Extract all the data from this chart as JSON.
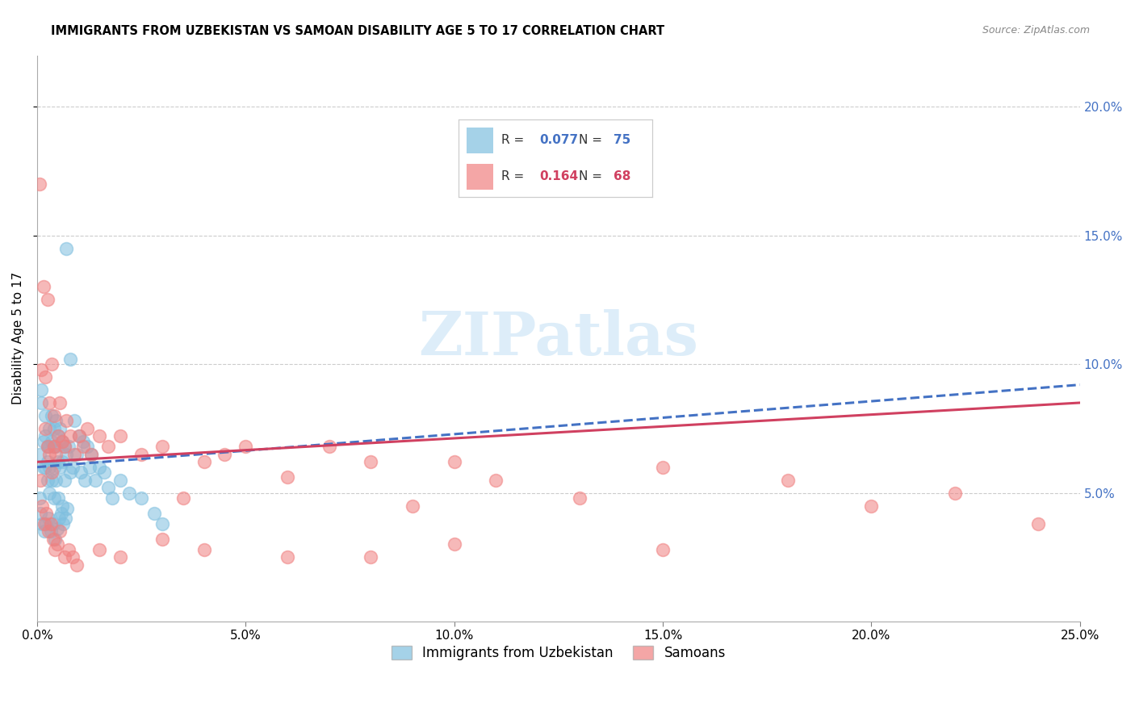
{
  "title": "IMMIGRANTS FROM UZBEKISTAN VS SAMOAN DISABILITY AGE 5 TO 17 CORRELATION CHART",
  "source": "Source: ZipAtlas.com",
  "ylabel": "Disability Age 5 to 17",
  "xlim": [
    0.0,
    0.25
  ],
  "ylim": [
    0.0,
    0.22
  ],
  "xticks": [
    0.0,
    0.05,
    0.1,
    0.15,
    0.2,
    0.25
  ],
  "yticks": [
    0.05,
    0.1,
    0.15,
    0.2
  ],
  "ytick_labels_right": [
    "5.0%",
    "10.0%",
    "15.0%",
    "20.0%"
  ],
  "xtick_labels": [
    "0.0%",
    "5.0%",
    "10.0%",
    "15.0%",
    "20.0%",
    "25.0%"
  ],
  "r1": "0.077",
  "n1": "75",
  "r2": "0.164",
  "n2": "68",
  "color_blue": "#7fbfdf",
  "color_pink": "#f08080",
  "color_blue_line": "#4472c4",
  "color_pink_line": "#d04060",
  "watermark": "ZIPatlas",
  "uzbekistan_x": [
    0.0005,
    0.001,
    0.001,
    0.0015,
    0.0015,
    0.002,
    0.002,
    0.002,
    0.0025,
    0.0025,
    0.0025,
    0.003,
    0.003,
    0.003,
    0.003,
    0.0035,
    0.0035,
    0.0035,
    0.004,
    0.004,
    0.004,
    0.004,
    0.0045,
    0.0045,
    0.0045,
    0.005,
    0.005,
    0.005,
    0.0055,
    0.0055,
    0.006,
    0.006,
    0.006,
    0.0065,
    0.0065,
    0.007,
    0.007,
    0.0075,
    0.008,
    0.008,
    0.0085,
    0.009,
    0.0095,
    0.01,
    0.0105,
    0.011,
    0.0115,
    0.012,
    0.0125,
    0.013,
    0.014,
    0.015,
    0.016,
    0.017,
    0.018,
    0.02,
    0.022,
    0.025,
    0.028,
    0.03,
    0.0005,
    0.0008,
    0.0012,
    0.0018,
    0.0022,
    0.0028,
    0.0032,
    0.0038,
    0.0042,
    0.0048,
    0.0052,
    0.0058,
    0.0062,
    0.0068,
    0.0072
  ],
  "uzbekistan_y": [
    0.065,
    0.09,
    0.085,
    0.07,
    0.06,
    0.08,
    0.072,
    0.06,
    0.068,
    0.062,
    0.055,
    0.075,
    0.068,
    0.06,
    0.05,
    0.08,
    0.07,
    0.055,
    0.075,
    0.068,
    0.06,
    0.048,
    0.078,
    0.068,
    0.055,
    0.072,
    0.062,
    0.048,
    0.075,
    0.06,
    0.07,
    0.062,
    0.045,
    0.068,
    0.055,
    0.145,
    0.065,
    0.068,
    0.102,
    0.058,
    0.06,
    0.078,
    0.065,
    0.072,
    0.058,
    0.07,
    0.055,
    0.068,
    0.06,
    0.065,
    0.055,
    0.06,
    0.058,
    0.052,
    0.048,
    0.055,
    0.05,
    0.048,
    0.042,
    0.038,
    0.048,
    0.042,
    0.038,
    0.035,
    0.038,
    0.04,
    0.035,
    0.038,
    0.032,
    0.036,
    0.04,
    0.042,
    0.038,
    0.04,
    0.044
  ],
  "samoan_x": [
    0.0005,
    0.001,
    0.0015,
    0.002,
    0.002,
    0.0025,
    0.0025,
    0.003,
    0.003,
    0.0035,
    0.0035,
    0.004,
    0.004,
    0.0045,
    0.005,
    0.0055,
    0.006,
    0.0065,
    0.007,
    0.008,
    0.009,
    0.01,
    0.011,
    0.012,
    0.013,
    0.015,
    0.017,
    0.02,
    0.025,
    0.03,
    0.035,
    0.04,
    0.045,
    0.05,
    0.06,
    0.07,
    0.08,
    0.09,
    0.1,
    0.11,
    0.13,
    0.15,
    0.18,
    0.2,
    0.22,
    0.24,
    0.0008,
    0.0012,
    0.0018,
    0.0022,
    0.0028,
    0.0032,
    0.0038,
    0.0042,
    0.0048,
    0.0055,
    0.0065,
    0.0075,
    0.0085,
    0.0095,
    0.015,
    0.02,
    0.03,
    0.04,
    0.06,
    0.08,
    0.1,
    0.15
  ],
  "samoan_y": [
    0.17,
    0.098,
    0.13,
    0.095,
    0.075,
    0.125,
    0.068,
    0.085,
    0.065,
    0.1,
    0.058,
    0.08,
    0.068,
    0.065,
    0.072,
    0.085,
    0.07,
    0.068,
    0.078,
    0.072,
    0.065,
    0.072,
    0.068,
    0.075,
    0.065,
    0.072,
    0.068,
    0.072,
    0.065,
    0.068,
    0.048,
    0.062,
    0.065,
    0.068,
    0.056,
    0.068,
    0.062,
    0.045,
    0.062,
    0.055,
    0.048,
    0.06,
    0.055,
    0.045,
    0.05,
    0.038,
    0.055,
    0.045,
    0.038,
    0.042,
    0.035,
    0.038,
    0.032,
    0.028,
    0.03,
    0.035,
    0.025,
    0.028,
    0.025,
    0.022,
    0.028,
    0.025,
    0.032,
    0.028,
    0.025,
    0.025,
    0.03,
    0.028
  ],
  "blue_line_x": [
    0.0,
    0.25
  ],
  "blue_line_y": [
    0.06,
    0.092
  ],
  "pink_line_x": [
    0.0,
    0.25
  ],
  "pink_line_y": [
    0.062,
    0.085
  ]
}
